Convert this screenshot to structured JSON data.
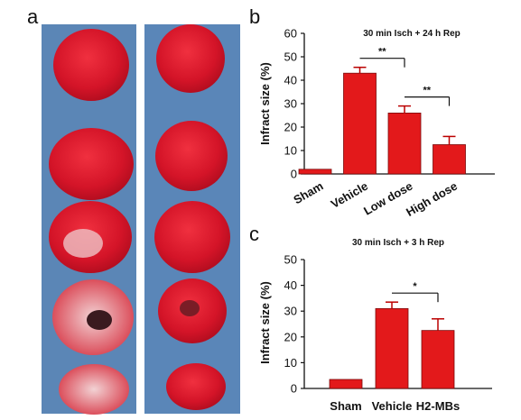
{
  "panel_labels": {
    "a": "a",
    "b": "b",
    "c": "c"
  },
  "photo": {
    "description_free": true,
    "colors": {
      "background": "#5b86b6",
      "tissue": "#d7162a",
      "pale": "#e8b9bd"
    }
  },
  "chart_data": [
    {
      "type": "bar",
      "title": "30 min Isch + 24 h Rep",
      "ylabel": "Infract size (%)",
      "xlabel": "",
      "categories": [
        "Sham",
        "Vehicle",
        "Low dose",
        "High dose"
      ],
      "values": [
        2,
        43,
        26,
        12.5
      ],
      "errors": [
        0,
        2.5,
        3,
        3.5
      ],
      "ylim": [
        0,
        60
      ],
      "yticks": [
        "0",
        "10",
        "20",
        "30",
        "40",
        "50",
        "60"
      ],
      "significance": [
        {
          "from": 1,
          "to": 2,
          "label": "**"
        },
        {
          "from": 2,
          "to": 3,
          "label": "**"
        }
      ],
      "bar_color": "#e3191b",
      "grid": false
    },
    {
      "type": "bar",
      "title": "30 min Isch + 3 h Rep",
      "ylabel": "Infract size (%)",
      "xlabel": "",
      "categories": [
        "Sham",
        "Vehicle",
        "H2-MBs"
      ],
      "values": [
        3.5,
        31,
        22.5
      ],
      "errors": [
        0,
        2.5,
        4.5
      ],
      "ylim": [
        0,
        50
      ],
      "yticks": [
        "0",
        "10",
        "20",
        "30",
        "40",
        "50"
      ],
      "significance": [
        {
          "from": 1,
          "to": 2,
          "label": "*"
        }
      ],
      "bar_color": "#e3191b",
      "grid": false
    }
  ]
}
